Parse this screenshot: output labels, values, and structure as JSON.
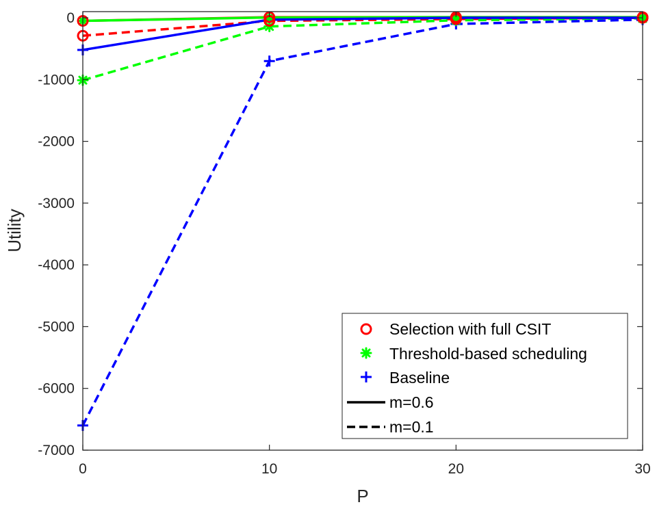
{
  "chart_data": {
    "type": "line",
    "title": "",
    "xlabel": "P",
    "ylabel": "Utility",
    "xlim": [
      0,
      30
    ],
    "ylim": [
      -7000,
      100
    ],
    "xticks": [
      0,
      10,
      20,
      30
    ],
    "yticks": [
      0,
      -1000,
      -2000,
      -3000,
      -4000,
      -5000,
      -6000,
      -7000
    ],
    "x": [
      0,
      10,
      20,
      30
    ],
    "grid": false,
    "legend_position": "bottom-right",
    "legend": {
      "methods": [
        {
          "name": "Selection with full CSIT",
          "color": "#ff0000",
          "marker": "circle"
        },
        {
          "name": "Threshold-based scheduling",
          "color": "#00ff00",
          "marker": "asterisk"
        },
        {
          "name": "Baseline",
          "color": "#0000ff",
          "marker": "plus"
        }
      ],
      "line_styles": [
        {
          "name": "m=0.6",
          "style": "solid"
        },
        {
          "name": "m=0.1",
          "style": "dashed"
        }
      ]
    },
    "series": [
      {
        "name": "Selection with full CSIT, m=0.6",
        "method": 0,
        "style": "solid",
        "values": [
          -50,
          10,
          10,
          10
        ]
      },
      {
        "name": "Threshold-based scheduling, m=0.6",
        "method": 1,
        "style": "solid",
        "values": [
          -50,
          5,
          10,
          10
        ]
      },
      {
        "name": "Baseline, m=0.6",
        "method": 2,
        "style": "solid",
        "values": [
          -520,
          -30,
          0,
          0
        ]
      },
      {
        "name": "Selection with full CSIT, m=0.1",
        "method": 0,
        "style": "dashed",
        "values": [
          -290,
          -50,
          -20,
          0
        ]
      },
      {
        "name": "Threshold-based scheduling, m=0.1",
        "method": 1,
        "style": "dashed",
        "values": [
          -1010,
          -140,
          -40,
          -10
        ]
      },
      {
        "name": "Baseline, m=0.1",
        "method": 2,
        "style": "dashed",
        "values": [
          -6600,
          -700,
          -100,
          -30
        ]
      }
    ]
  }
}
